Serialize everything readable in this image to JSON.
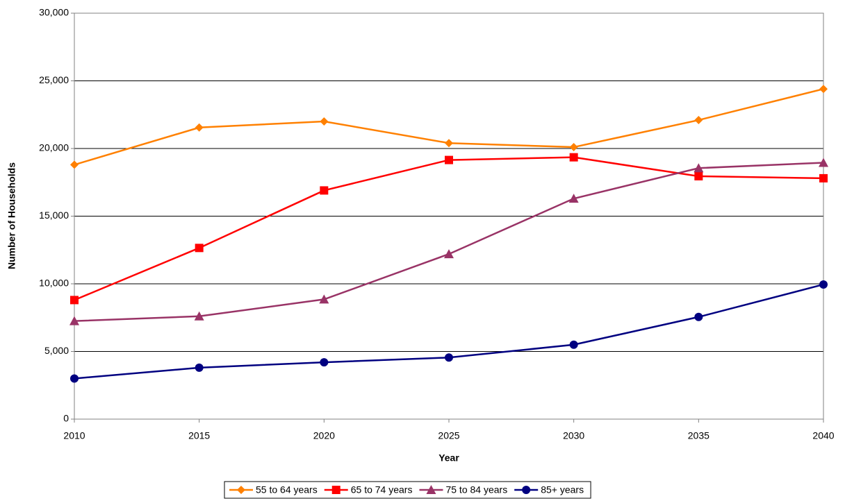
{
  "chart_data": {
    "type": "line",
    "x_label": "Year",
    "y_label": "Number of Households",
    "x": [
      2010,
      2015,
      2020,
      2025,
      2030,
      2035,
      2040
    ],
    "xlim": [
      2010,
      2040
    ],
    "xticks": [
      2010,
      2015,
      2020,
      2025,
      2030,
      2035,
      2040
    ],
    "ylim": [
      0,
      30000
    ],
    "yticks": [
      0,
      {
        "value": 5000,
        "label": "5,000"
      },
      {
        "value": 10000,
        "label": "10,000"
      },
      {
        "value": 15000,
        "label": "15,000"
      },
      {
        "value": 20000,
        "label": "20,000"
      },
      {
        "value": 25000,
        "label": "25,000"
      },
      {
        "value": 30000,
        "label": "30,000"
      }
    ],
    "grid": true,
    "legend": "bottom",
    "series": [
      {
        "name": "55 to 64 years",
        "color": "#ff8000",
        "marker": "diamond",
        "values": [
          18800,
          21550,
          22000,
          20400,
          20100,
          22100,
          24400
        ]
      },
      {
        "name": "65 to 74 years",
        "color": "#ff0000",
        "marker": "square",
        "values": [
          8800,
          12650,
          16900,
          19150,
          19350,
          17950,
          17800
        ]
      },
      {
        "name": "75 to 84 years",
        "color": "#993366",
        "marker": "triangle",
        "values": [
          7250,
          7600,
          8850,
          12200,
          16300,
          18550,
          18950
        ]
      },
      {
        "name": "85+ years",
        "color": "#000080",
        "marker": "circle",
        "values": [
          3000,
          3800,
          4200,
          4550,
          5500,
          7550,
          9950
        ]
      }
    ]
  }
}
